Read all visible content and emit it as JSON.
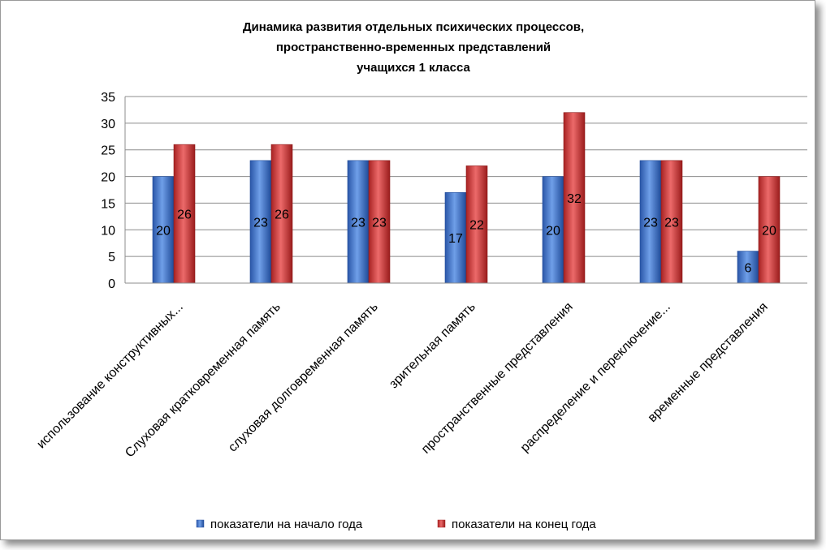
{
  "chart_data": {
    "type": "bar",
    "title": [
      "Динамика развития отдельных психических процессов,",
      "пространственно-временных представлений",
      "учащихся  1  класса"
    ],
    "categories": [
      "использование конструктивных...",
      "Слуховая кратковременная память",
      "слуховая долговременная память",
      "зрительная память",
      "пространственные представления",
      "распределение и переключение...",
      "временные представления"
    ],
    "series": [
      {
        "name": "показатели на начало года",
        "values": [
          20,
          23,
          23,
          17,
          20,
          23,
          6
        ],
        "color": "#3a6fc8"
      },
      {
        "name": "показатели на конец года",
        "values": [
          26,
          26,
          23,
          22,
          32,
          23,
          20
        ],
        "color": "#d03434"
      }
    ],
    "ylim": [
      0,
      35
    ],
    "yticks": [
      0,
      5,
      10,
      15,
      20,
      25,
      30,
      35
    ],
    "grid": true,
    "legend_position": "bottom"
  }
}
